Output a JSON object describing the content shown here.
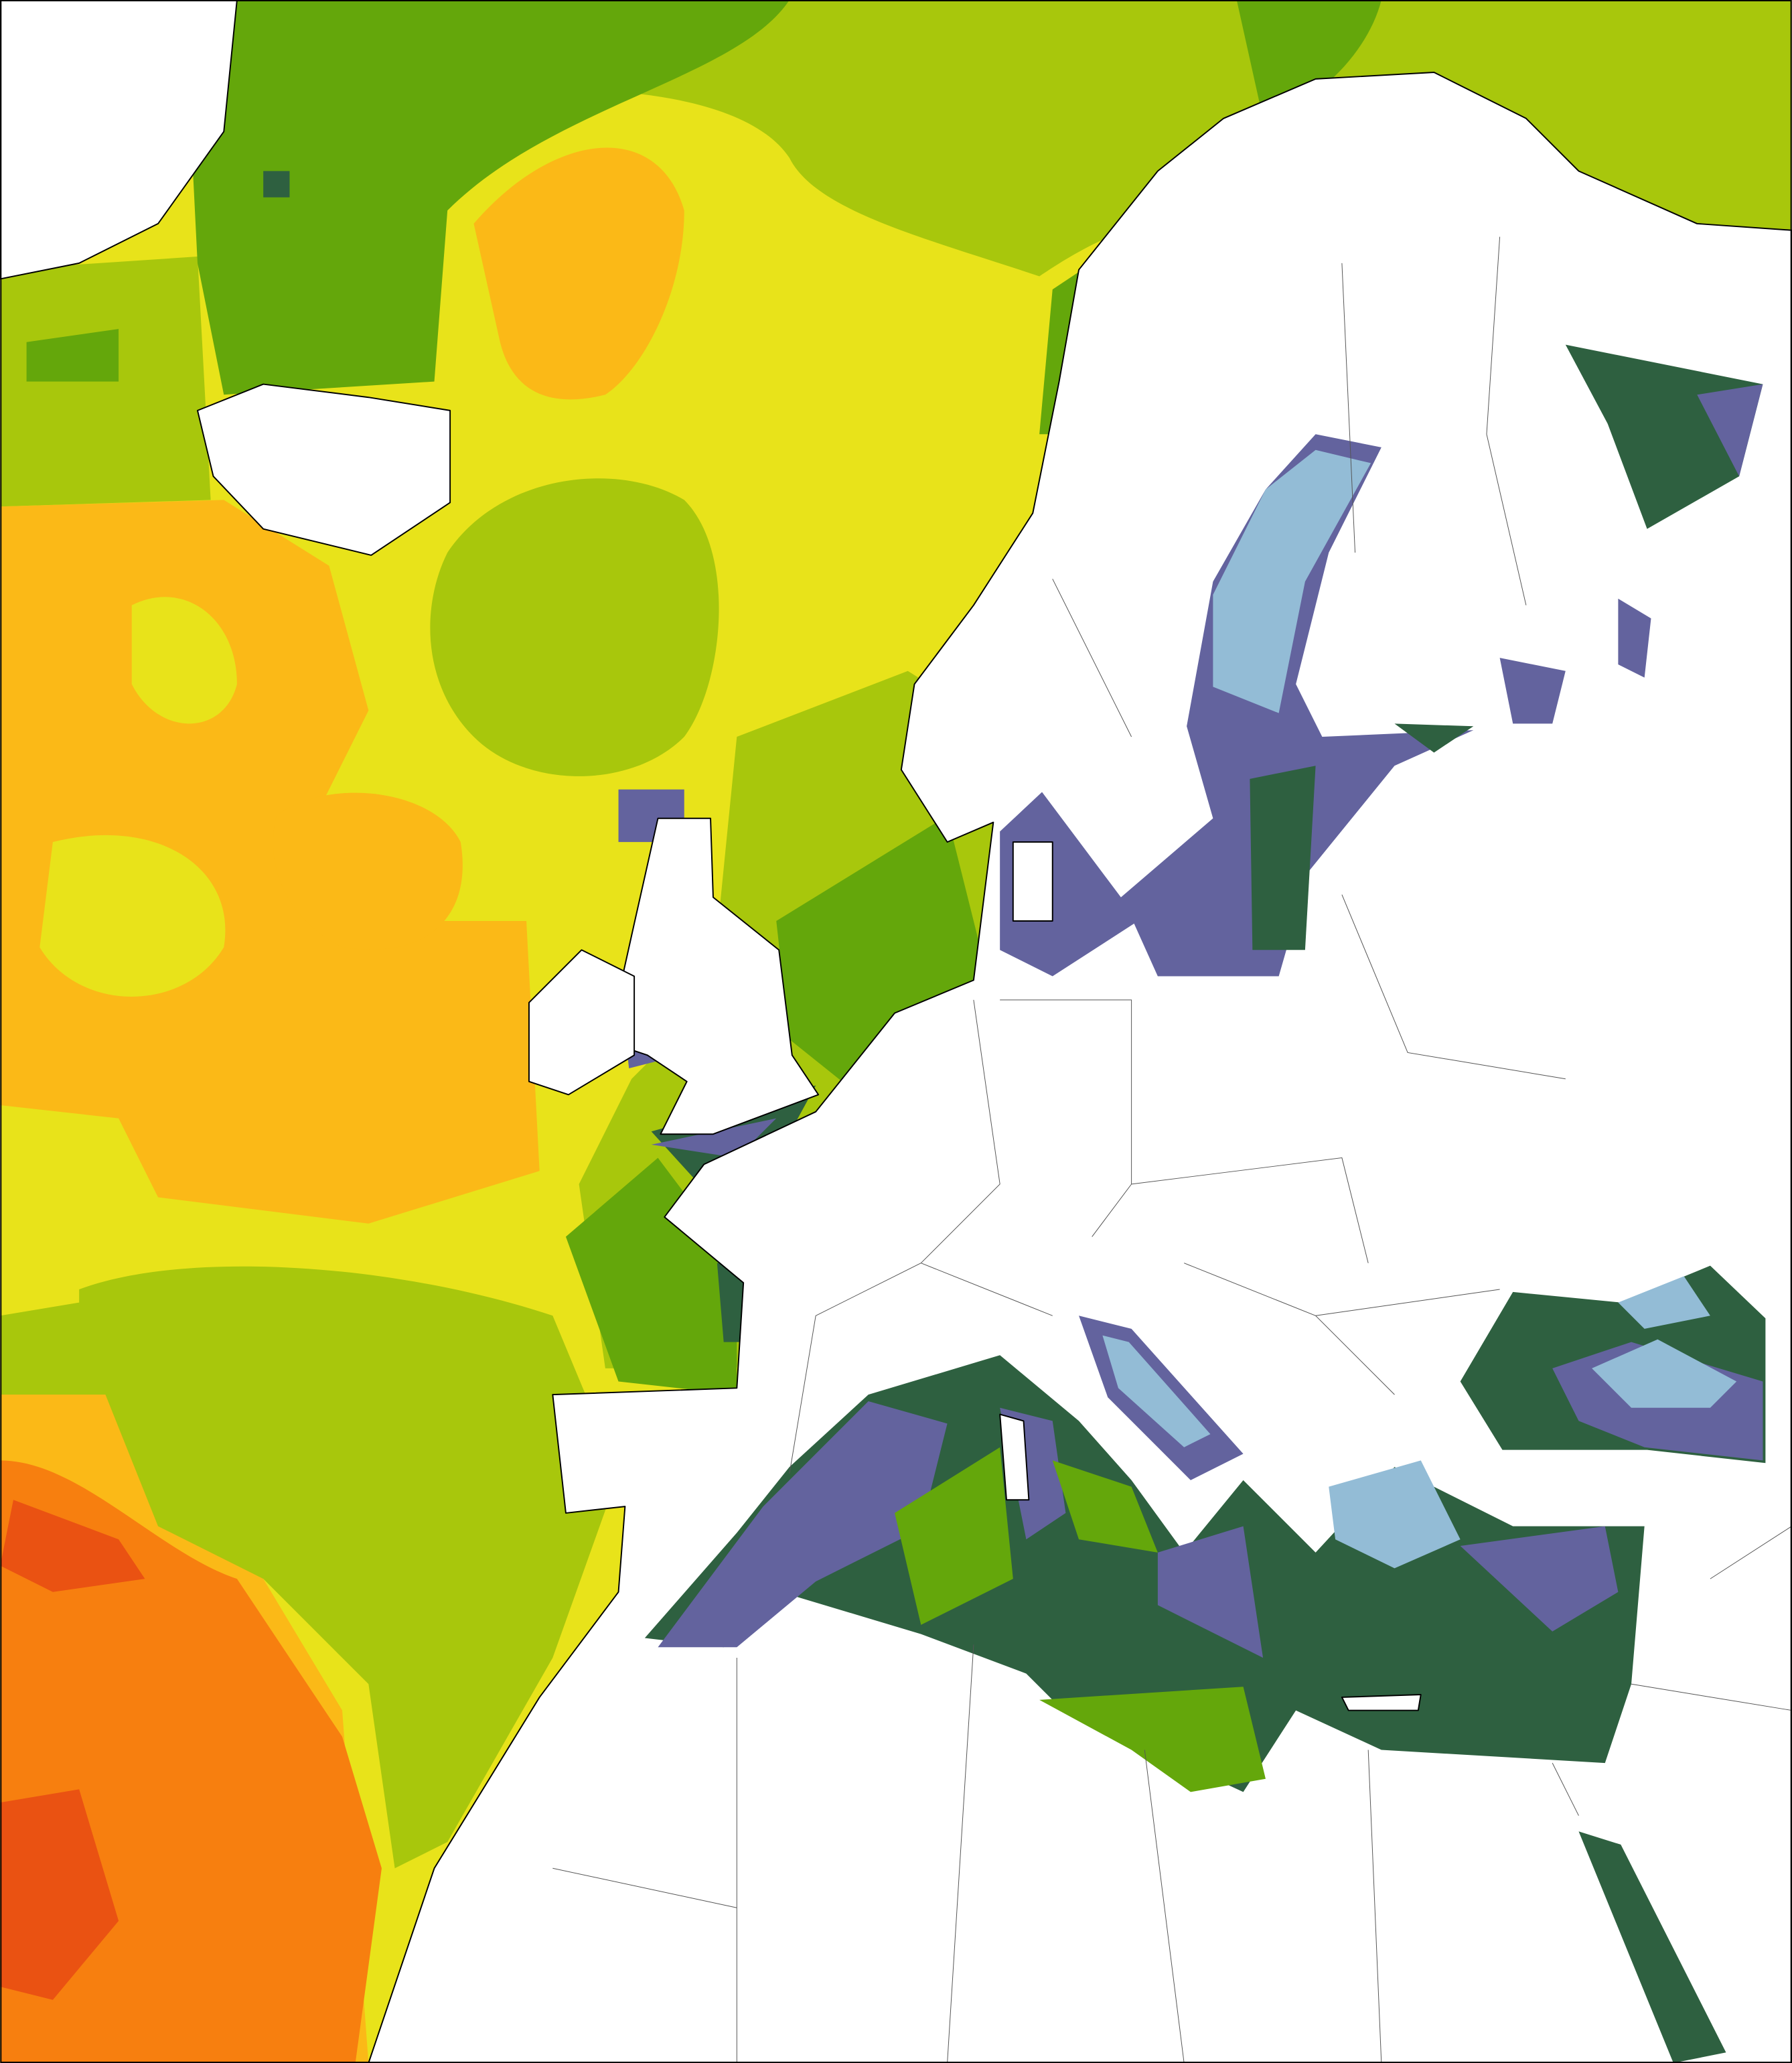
{
  "map": {
    "palette": [
      "#e8e31a",
      "#a8c70c",
      "#64a70b",
      "#2e6040",
      "#63639e",
      "#93bcd6",
      "#fbb917",
      "#f77f0f",
      "#ea5212"
    ],
    "land_color": "#ffffff",
    "border_color": "#000000"
  }
}
